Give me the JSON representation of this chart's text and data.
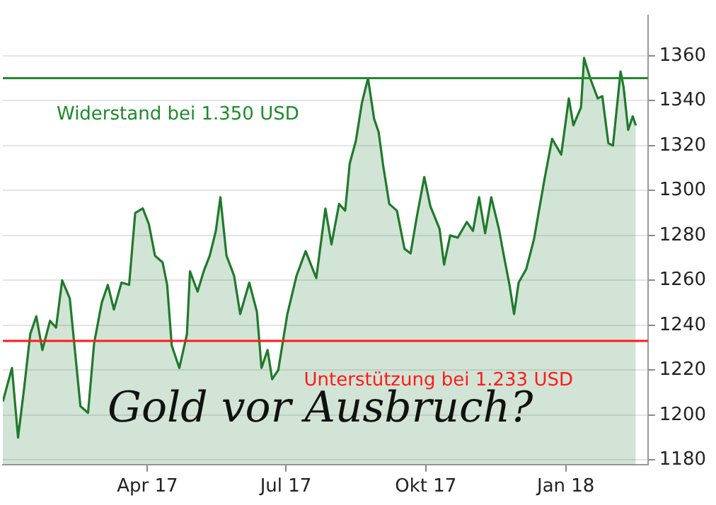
{
  "chart_data": {
    "type": "area",
    "x": [
      "2016-12-27",
      "2017-01-02",
      "2017-01-06",
      "2017-01-10",
      "2017-01-14",
      "2017-01-18",
      "2017-01-22",
      "2017-01-27",
      "2017-01-31",
      "2017-02-04",
      "2017-02-09",
      "2017-02-16",
      "2017-02-21",
      "2017-02-25",
      "2017-03-02",
      "2017-03-06",
      "2017-03-10",
      "2017-03-15",
      "2017-03-20",
      "2017-03-24",
      "2017-03-29",
      "2017-04-02",
      "2017-04-06",
      "2017-04-11",
      "2017-04-14",
      "2017-04-17",
      "2017-04-22",
      "2017-04-27",
      "2017-04-29",
      "2017-05-04",
      "2017-05-08",
      "2017-05-12",
      "2017-05-16",
      "2017-05-19",
      "2017-05-23",
      "2017-05-28",
      "2017-06-01",
      "2017-06-07",
      "2017-06-12",
      "2017-06-15",
      "2017-06-19",
      "2017-06-22",
      "2017-06-26",
      "2017-07-02",
      "2017-07-08",
      "2017-07-14",
      "2017-07-21",
      "2017-07-27",
      "2017-07-31",
      "2017-08-05",
      "2017-08-09",
      "2017-08-12",
      "2017-08-16",
      "2017-08-20",
      "2017-08-24",
      "2017-08-28",
      "2017-08-31",
      "2017-09-03",
      "2017-09-07",
      "2017-09-12",
      "2017-09-17",
      "2017-09-21",
      "2017-09-25",
      "2017-09-30",
      "2017-10-04",
      "2017-10-10",
      "2017-10-13",
      "2017-10-17",
      "2017-10-22",
      "2017-10-28",
      "2017-11-01",
      "2017-11-05",
      "2017-11-09",
      "2017-11-13",
      "2017-11-18",
      "2017-11-21",
      "2017-11-25",
      "2017-11-28",
      "2017-12-01",
      "2017-12-06",
      "2017-12-11",
      "2017-12-18",
      "2017-12-23",
      "2017-12-29",
      "2018-01-03",
      "2018-01-06",
      "2018-01-11",
      "2018-01-13",
      "2018-01-17",
      "2018-01-22",
      "2018-01-25",
      "2018-01-29",
      "2018-02-01",
      "2018-02-06",
      "2018-02-08",
      "2018-02-11",
      "2018-02-14",
      "2018-02-16"
    ],
    "series": [
      {
        "color": "#1f7a2c",
        "values": [
          1206,
          1221,
          1190,
          1212,
          1236,
          1244,
          1229,
          1242,
          1239,
          1260,
          1252,
          1204,
          1201,
          1232,
          1250,
          1258,
          1247,
          1259,
          1258,
          1290,
          1292,
          1285,
          1271,
          1268,
          1258,
          1231,
          1221,
          1236,
          1264,
          1255,
          1264,
          1271,
          1282,
          1297,
          1271,
          1262,
          1245,
          1259,
          1246,
          1221,
          1229,
          1216,
          1220,
          1245,
          1262,
          1273,
          1261,
          1292,
          1276,
          1294,
          1291,
          1312,
          1322,
          1339,
          1350,
          1332,
          1326,
          1311,
          1294,
          1291,
          1274,
          1272,
          1288,
          1306,
          1293,
          1283,
          1267,
          1280,
          1279,
          1286,
          1282,
          1297,
          1281,
          1297,
          1283,
          1272,
          1258,
          1245,
          1259,
          1265,
          1278,
          1305,
          1323,
          1316,
          1341,
          1329,
          1337,
          1359,
          1350,
          1341,
          1342,
          1321,
          1320,
          1353,
          1346,
          1327,
          1333,
          1329
        ]
      }
    ],
    "xlim": [
      "2016-12-27",
      "2018-02-24"
    ],
    "xticks": [
      {
        "value": "2017-04-01",
        "label": "Apr 17"
      },
      {
        "value": "2017-07-01",
        "label": "Jul 17"
      },
      {
        "value": "2017-10-01",
        "label": "Okt 17"
      },
      {
        "value": "2018-01-01",
        "label": "Jan 18"
      }
    ],
    "ylim": [
      1178,
      1378
    ],
    "yticks": [
      1180,
      1200,
      1220,
      1240,
      1260,
      1280,
      1300,
      1320,
      1340,
      1360
    ],
    "grid": "y",
    "ref_lines": [
      {
        "axis": "y",
        "value": 1350,
        "label": "Widerstand bei 1.350 USD",
        "color": "#1f8a2c"
      },
      {
        "axis": "y",
        "value": 1233,
        "label": "Unterstützung bei 1.233 USD",
        "color": "#ff1a1a"
      }
    ],
    "annotations": [
      "Gold vor Ausbruch?"
    ]
  }
}
